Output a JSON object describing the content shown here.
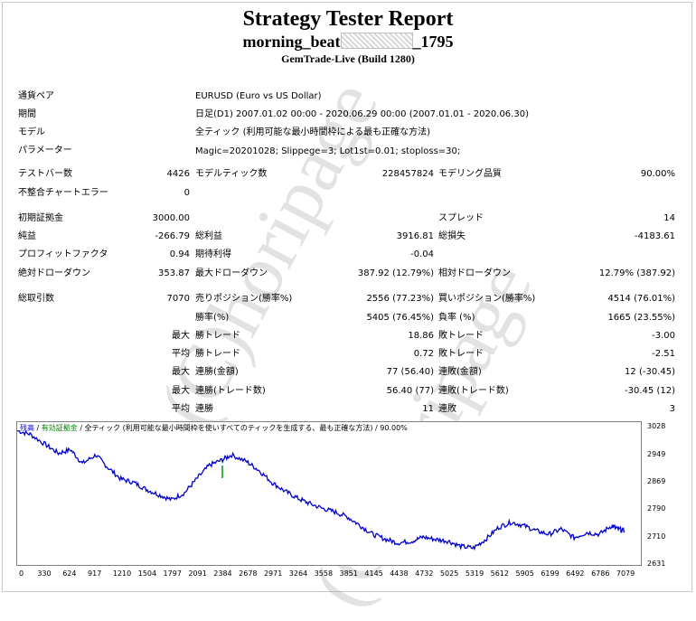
{
  "header": {
    "title": "Strategy Tester Report",
    "subtitle_start": "morning_beat",
    "subtitle_end": "_1795",
    "build": "GemTrade-Live (Build 1280)"
  },
  "info": [
    {
      "label": "通貨ペア",
      "value": "EURUSD (Euro vs US Dollar)"
    },
    {
      "label": "期間",
      "value": "日足(D1) 2007.01.02 00:00 - 2020.06.29 00:00 (2007.01.01 - 2020.06.30)"
    },
    {
      "label": "モデル",
      "value": "全ティック (利用可能な最小時間枠による最も正確な方法)"
    },
    {
      "label": "パラメーター",
      "value": "Magic=20201028; Slippege=3; Lot1st=0.01; stoploss=30;"
    }
  ],
  "stats": {
    "bars_label": "テストバー数",
    "bars": "4426",
    "ticks_label": "モデルティック数",
    "ticks": "228457824",
    "quality_label": "モデリング品質",
    "quality": "90.00%",
    "mismatch_label": "不整合チャートエラー",
    "mismatch": "0",
    "deposit_label": "初期証拠金",
    "deposit": "3000.00",
    "spread_label": "スプレッド",
    "spread": "14",
    "net_label": "純益",
    "net": "-266.79",
    "gross_profit_label": "総利益",
    "gross_profit": "3916.81",
    "gross_loss_label": "総損失",
    "gross_loss": "-4183.61",
    "pf_label": "プロフィットファクタ",
    "pf": "0.94",
    "expected_label": "期待利得",
    "expected": "-0.04",
    "abs_dd_label": "絶対ドローダウン",
    "abs_dd": "353.87",
    "max_dd_label": "最大ドローダウン",
    "max_dd": "387.92 (12.79%)",
    "rel_dd_label": "相対ドローダウン",
    "rel_dd": "12.79% (387.92)",
    "total_trades_label": "総取引数",
    "total_trades": "7070",
    "short_label": "売りポジション(勝率%)",
    "short": "2556 (77.23%)",
    "long_label": "買いポジション(勝率%)",
    "long": "4514 (76.01%)",
    "win_rate_label": "勝率(%)",
    "win_rate": "5405 (76.45%)",
    "loss_rate_label": "負率 (%)",
    "loss_rate": "1665 (23.55%)",
    "max_word": "最大",
    "avg_word": "平均",
    "win_trade_label": "勝トレード",
    "loss_trade_label": "敗トレード",
    "max_win": "18.86",
    "max_loss": "-3.00",
    "avg_win": "0.72",
    "avg_loss": "-2.51",
    "cons_win_amt_label": "連勝(金額)",
    "cons_win_amt": "77 (56.40)",
    "cons_loss_amt_label": "連敗(金額)",
    "cons_loss_amt": "12 (-30.45)",
    "cons_win_cnt_label": "連勝(トレード数)",
    "cons_win_cnt": "56.40 (77)",
    "cons_loss_cnt_label": "連敗(トレード数)",
    "cons_loss_cnt": "-30.45 (12)",
    "avg_win_label": "連勝",
    "avg_cons_win": "11",
    "avg_loss_label": "連敗",
    "avg_cons_loss": "3"
  },
  "watermark": "(C)horipage",
  "chart_legend": {
    "balance": "残高",
    "volume": "有効証拠金",
    "rest": " / 全ティック (利用可能な最小時間枠を使いすべてのティックを生成する、最も正確な方法) / 90.00%"
  },
  "chart_data": {
    "type": "line",
    "x_ticks": [
      "0",
      "330",
      "624",
      "917",
      "1210",
      "1504",
      "1797",
      "2091",
      "2384",
      "2678",
      "2971",
      "3264",
      "3558",
      "3851",
      "4145",
      "4438",
      "4732",
      "5025",
      "5319",
      "5612",
      "5905",
      "6199",
      "6492",
      "6786",
      "7079"
    ],
    "y_ticks": [
      "3028",
      "2949",
      "2869",
      "2790",
      "2710",
      "2631"
    ],
    "ylim": [
      2631,
      3045
    ],
    "xlim": [
      0,
      7270
    ],
    "series": [
      {
        "color": "#0000c8",
        "x": [
          0,
          150,
          330,
          480,
          624,
          760,
          917,
          1050,
          1210,
          1360,
          1504,
          1650,
          1797,
          1950,
          2091,
          2240,
          2384,
          2500,
          2678,
          2820,
          2971,
          3120,
          3264,
          3400,
          3558,
          3700,
          3851,
          4000,
          4145,
          4300,
          4438,
          4600,
          4732,
          4880,
          5025,
          5170,
          5319,
          5460,
          5612,
          5760,
          5905,
          6050,
          6199,
          6340,
          6492,
          6640,
          6786,
          6930,
          7000,
          7079
        ],
        "y": [
          3020,
          3010,
          2980,
          2955,
          2965,
          2925,
          2950,
          2915,
          2880,
          2870,
          2850,
          2835,
          2820,
          2840,
          2880,
          2920,
          2935,
          2950,
          2930,
          2905,
          2870,
          2845,
          2825,
          2810,
          2795,
          2785,
          2770,
          2745,
          2720,
          2705,
          2695,
          2700,
          2712,
          2705,
          2700,
          2685,
          2680,
          2705,
          2740,
          2755,
          2745,
          2730,
          2720,
          2735,
          2710,
          2725,
          2720,
          2745,
          2735,
          2730
        ]
      }
    ]
  }
}
